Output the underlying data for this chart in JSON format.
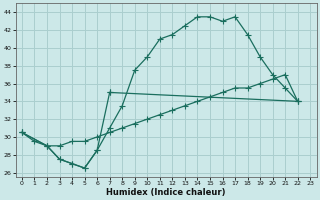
{
  "xlabel": "Humidex (Indice chaleur)",
  "bg_color": "#cce8e8",
  "grid_color": "#aacece",
  "line_color": "#1a6e5e",
  "line1": {
    "x": [
      0,
      1,
      2,
      3,
      4,
      5,
      6,
      7,
      8,
      9,
      10,
      11,
      12,
      13,
      14,
      15,
      16,
      17,
      18,
      19,
      20,
      21,
      22
    ],
    "y": [
      30.5,
      29.5,
      29.0,
      27.5,
      27.0,
      26.5,
      28.5,
      31.0,
      33.5,
      37.5,
      39.0,
      41.0,
      41.5,
      42.5,
      43.5,
      43.5,
      43.0,
      43.5,
      41.5,
      39.0,
      37.0,
      35.5,
      34.0
    ]
  },
  "line2_seg1": {
    "x": [
      0,
      2,
      3,
      4,
      5,
      6,
      7
    ],
    "y": [
      30.5,
      29.0,
      27.5,
      27.0,
      26.5,
      28.5,
      35.0
    ]
  },
  "line2_seg2": {
    "x": [
      7,
      22
    ],
    "y": [
      35.0,
      34.0
    ]
  },
  "line3": {
    "x": [
      0,
      2,
      3,
      4,
      5,
      6,
      7,
      8,
      9,
      10,
      11,
      12,
      13,
      14,
      15,
      16,
      17,
      18,
      19,
      20,
      21,
      22
    ],
    "y": [
      30.5,
      29.0,
      29.0,
      29.5,
      29.5,
      30.0,
      30.5,
      31.0,
      31.5,
      32.0,
      32.5,
      33.0,
      33.5,
      34.0,
      34.5,
      35.0,
      35.5,
      35.5,
      36.0,
      36.5,
      37.0,
      34.0
    ]
  },
  "xlim": [
    -0.5,
    23.5
  ],
  "ylim": [
    25.5,
    45.0
  ],
  "yticks": [
    26,
    28,
    30,
    32,
    34,
    36,
    38,
    40,
    42,
    44
  ],
  "xticks": [
    0,
    1,
    2,
    3,
    4,
    5,
    6,
    7,
    8,
    9,
    10,
    11,
    12,
    13,
    14,
    15,
    16,
    17,
    18,
    19,
    20,
    21,
    22,
    23
  ]
}
